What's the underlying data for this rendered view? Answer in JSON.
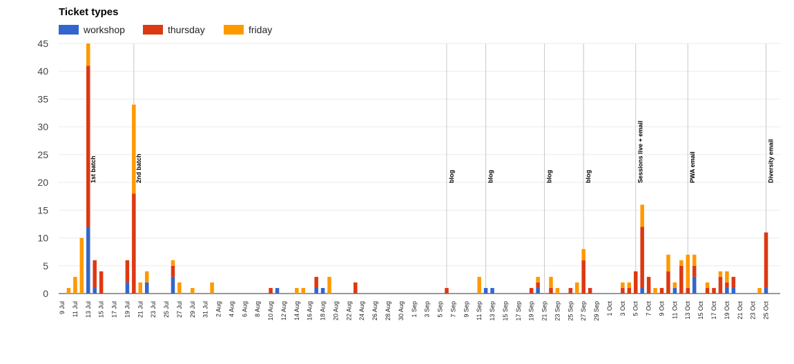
{
  "chart_data": {
    "type": "bar",
    "stacked": true,
    "title": "Ticket types",
    "legend": {
      "position": "top-left"
    },
    "grid": true,
    "ylim": [
      0,
      45
    ],
    "yticks": [
      0,
      5,
      10,
      15,
      20,
      25,
      30,
      35,
      40,
      45
    ],
    "x_start": "2016-07-09",
    "x_end": "2016-10-25",
    "xtick_labels": [
      "9 Jul",
      "11 Jul",
      "13 Jul",
      "15 Jul",
      "17 Jul",
      "19 Jul",
      "21 Jul",
      "23 Jul",
      "25 Jul",
      "27 Jul",
      "29 Jul",
      "31 Jul",
      "2 Aug",
      "4 Aug",
      "6 Aug",
      "8 Aug",
      "10 Aug",
      "12 Aug",
      "14 Aug",
      "16 Aug",
      "18 Aug",
      "20 Aug",
      "22 Aug",
      "24 Aug",
      "26 Aug",
      "28 Aug",
      "30 Aug",
      "1 Sep",
      "3 Sep",
      "5 Sep",
      "7 Sep",
      "9 Sep",
      "11 Sep",
      "13 Sep",
      "15 Sep",
      "17 Sep",
      "19 Sep",
      "21 Sep",
      "23 Sep",
      "25 Sep",
      "27 Sep",
      "29 Sep",
      "1 Oct",
      "3 Oct",
      "5 Oct",
      "7 Oct",
      "9 Oct",
      "11 Oct",
      "13 Oct",
      "15 Oct",
      "17 Oct",
      "19 Oct",
      "21 Oct",
      "23 Oct",
      "25 Oct"
    ],
    "series": [
      {
        "name": "workshop",
        "color": "#3366cc"
      },
      {
        "name": "thursday",
        "color": "#dc3912"
      },
      {
        "name": "friday",
        "color": "#ff9900"
      }
    ],
    "points": [
      {
        "date": "2016-07-10",
        "values": [
          0,
          0,
          1
        ]
      },
      {
        "date": "2016-07-11",
        "values": [
          0,
          0,
          3
        ]
      },
      {
        "date": "2016-07-12",
        "values": [
          0,
          0,
          10
        ]
      },
      {
        "date": "2016-07-13",
        "values": [
          12,
          29,
          4
        ]
      },
      {
        "date": "2016-07-14",
        "values": [
          1,
          5,
          0
        ]
      },
      {
        "date": "2016-07-15",
        "values": [
          0,
          4,
          0
        ]
      },
      {
        "date": "2016-07-19",
        "values": [
          2,
          4,
          0
        ]
      },
      {
        "date": "2016-07-20",
        "values": [
          0,
          18,
          16
        ]
      },
      {
        "date": "2016-07-21",
        "values": [
          0,
          0,
          2
        ]
      },
      {
        "date": "2016-07-22",
        "values": [
          2,
          0,
          2
        ]
      },
      {
        "date": "2016-07-26",
        "values": [
          3,
          2,
          1
        ]
      },
      {
        "date": "2016-07-27",
        "values": [
          0,
          0,
          2
        ]
      },
      {
        "date": "2016-07-29",
        "values": [
          0,
          0,
          1
        ]
      },
      {
        "date": "2016-08-01",
        "values": [
          0,
          0,
          2
        ]
      },
      {
        "date": "2016-08-10",
        "values": [
          0,
          1,
          0
        ]
      },
      {
        "date": "2016-08-11",
        "values": [
          1,
          0,
          0
        ]
      },
      {
        "date": "2016-08-14",
        "values": [
          0,
          0,
          1
        ]
      },
      {
        "date": "2016-08-15",
        "values": [
          0,
          0,
          1
        ]
      },
      {
        "date": "2016-08-17",
        "values": [
          1,
          2,
          0
        ]
      },
      {
        "date": "2016-08-18",
        "values": [
          1,
          0,
          0
        ]
      },
      {
        "date": "2016-08-19",
        "values": [
          0,
          0,
          3
        ]
      },
      {
        "date": "2016-08-23",
        "values": [
          0,
          2,
          0
        ]
      },
      {
        "date": "2016-09-06",
        "values": [
          0,
          1,
          0
        ]
      },
      {
        "date": "2016-09-11",
        "values": [
          0,
          0,
          3
        ]
      },
      {
        "date": "2016-09-12",
        "values": [
          1,
          0,
          0
        ]
      },
      {
        "date": "2016-09-13",
        "values": [
          1,
          0,
          0
        ]
      },
      {
        "date": "2016-09-19",
        "values": [
          0,
          1,
          0
        ]
      },
      {
        "date": "2016-09-20",
        "values": [
          1,
          1,
          1
        ]
      },
      {
        "date": "2016-09-22",
        "values": [
          0,
          1,
          2
        ]
      },
      {
        "date": "2016-09-23",
        "values": [
          0,
          0,
          1
        ]
      },
      {
        "date": "2016-09-25",
        "values": [
          0,
          1,
          0
        ]
      },
      {
        "date": "2016-09-26",
        "values": [
          0,
          0,
          2
        ]
      },
      {
        "date": "2016-09-27",
        "values": [
          0,
          6,
          2
        ]
      },
      {
        "date": "2016-09-28",
        "values": [
          0,
          1,
          0
        ]
      },
      {
        "date": "2016-10-03",
        "values": [
          0,
          1,
          1
        ]
      },
      {
        "date": "2016-10-04",
        "values": [
          0,
          1,
          1
        ]
      },
      {
        "date": "2016-10-05",
        "values": [
          0,
          4,
          0
        ]
      },
      {
        "date": "2016-10-06",
        "values": [
          1,
          11,
          4
        ]
      },
      {
        "date": "2016-10-07",
        "values": [
          0,
          3,
          0
        ]
      },
      {
        "date": "2016-10-08",
        "values": [
          0,
          0,
          1
        ]
      },
      {
        "date": "2016-10-09",
        "values": [
          0,
          1,
          0
        ]
      },
      {
        "date": "2016-10-10",
        "values": [
          0,
          4,
          3
        ]
      },
      {
        "date": "2016-10-11",
        "values": [
          1,
          0,
          1
        ]
      },
      {
        "date": "2016-10-12",
        "values": [
          0,
          5,
          1
        ]
      },
      {
        "date": "2016-10-13",
        "values": [
          0,
          1,
          6
        ]
      },
      {
        "date": "2016-10-14",
        "values": [
          3,
          2,
          2
        ]
      },
      {
        "date": "2016-10-16",
        "values": [
          0,
          1,
          1
        ]
      },
      {
        "date": "2016-10-17",
        "values": [
          0,
          1,
          0
        ]
      },
      {
        "date": "2016-10-18",
        "values": [
          0,
          3,
          1
        ]
      },
      {
        "date": "2016-10-19",
        "values": [
          1,
          1,
          2
        ]
      },
      {
        "date": "2016-10-20",
        "values": [
          1,
          2,
          0
        ]
      },
      {
        "date": "2016-10-24",
        "values": [
          0,
          0,
          1
        ]
      },
      {
        "date": "2016-10-25",
        "values": [
          1,
          10,
          0
        ]
      }
    ],
    "annotations": [
      {
        "date": "2016-07-13",
        "text": "1st batch"
      },
      {
        "date": "2016-07-20",
        "text": "2nd batch"
      },
      {
        "date": "2016-09-06",
        "text": "blog"
      },
      {
        "date": "2016-09-12",
        "text": "blog"
      },
      {
        "date": "2016-09-21",
        "text": "blog"
      },
      {
        "date": "2016-09-27",
        "text": "blog"
      },
      {
        "date": "2016-10-05",
        "text": "Sessions live + email"
      },
      {
        "date": "2016-10-13",
        "text": "PWA email"
      },
      {
        "date": "2016-10-25",
        "text": "Diversity email"
      }
    ]
  }
}
